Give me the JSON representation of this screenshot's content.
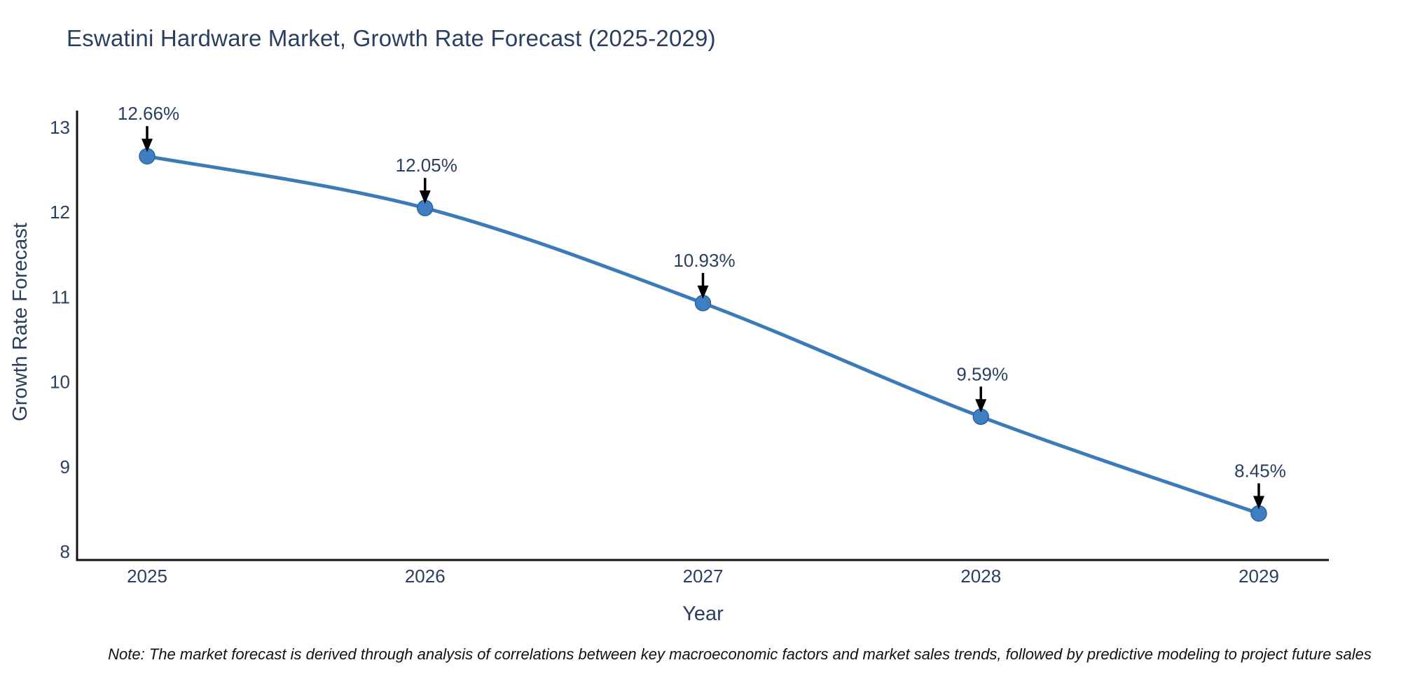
{
  "title": "Eswatini Hardware Market, Growth Rate Forecast (2025-2029)",
  "note": "Note: The market forecast is derived through analysis of correlations between key macroeconomic factors and market sales trends, followed by predictive modeling to project future sales",
  "chart_data": {
    "type": "line",
    "title": "Eswatini Hardware Market, Growth Rate Forecast (2025-2029)",
    "xlabel": "Year",
    "ylabel": "Growth Rate Forecast",
    "categories": [
      "2025",
      "2026",
      "2027",
      "2028",
      "2029"
    ],
    "values": [
      12.66,
      12.05,
      10.93,
      9.59,
      8.45
    ],
    "point_labels": [
      "12.66%",
      "12.05%",
      "10.93%",
      "9.59%",
      "8.45%"
    ],
    "yticks": [
      8,
      9,
      10,
      11,
      12,
      13
    ],
    "ylim": [
      7.9,
      13.18
    ],
    "line_shape": "spline",
    "grid": false,
    "legend_position": "none",
    "colors": {
      "line": "#3c7bb7",
      "marker_fill": "#3d7fc0",
      "marker_stroke": "#2c669c",
      "arrow": "#000000",
      "axis_line": "#111111",
      "text": "#2a3f5f"
    }
  }
}
